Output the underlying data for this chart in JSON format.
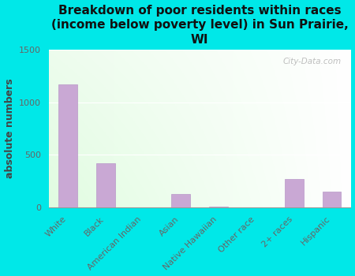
{
  "title": "Breakdown of poor residents within races\n(income below poverty level) in Sun Prairie,\nWI",
  "ylabel": "absolute numbers",
  "categories": [
    "White",
    "Black",
    "American Indian",
    "Asian",
    "Native Hawaiian",
    "Other race",
    "2+ races",
    "Hispanic"
  ],
  "values": [
    1170,
    420,
    0,
    130,
    10,
    0,
    270,
    150
  ],
  "bar_color": "#c9a8d4",
  "bar_edgecolor": "#b898c8",
  "background_color": "#00e8e8",
  "plot_bg_topleft": "#e0f5e0",
  "plot_bg_topright": "#f8fff8",
  "plot_bg_bottom": "#f8fff8",
  "ylim": [
    0,
    1500
  ],
  "yticks": [
    0,
    500,
    1000,
    1500
  ],
  "title_fontsize": 11,
  "ylabel_fontsize": 9,
  "tick_fontsize": 8,
  "watermark": "City-Data.com"
}
